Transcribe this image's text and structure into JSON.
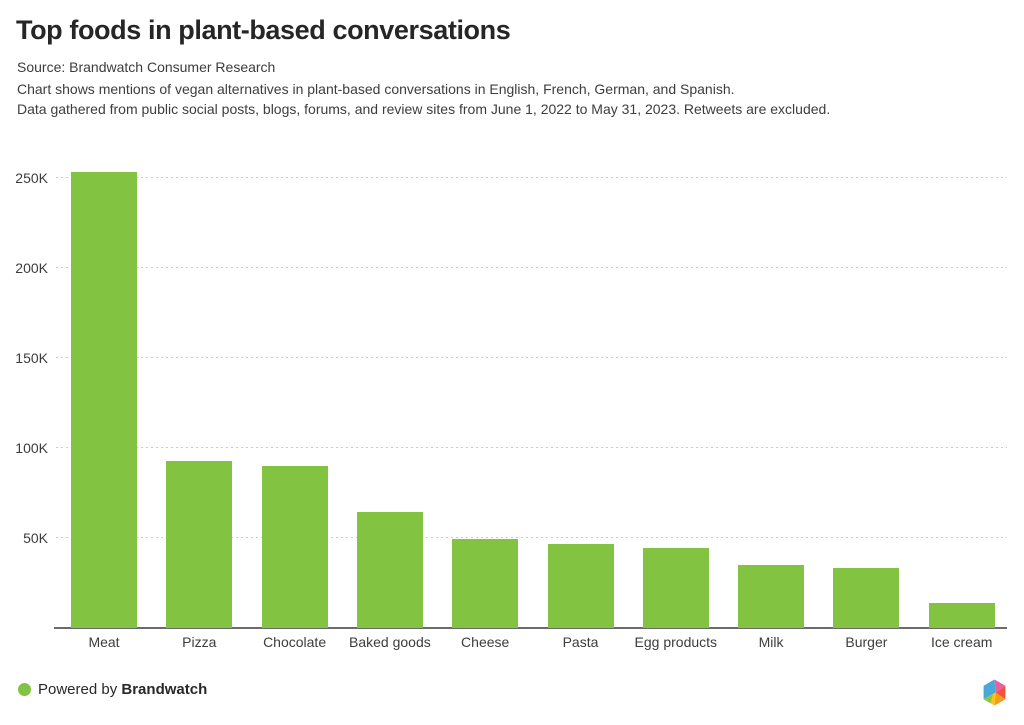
{
  "header": {
    "title": "Top foods in plant-based conversations",
    "source": "Source: Brandwatch Consumer Research",
    "description_line1": "Chart shows mentions of vegan alternatives in plant-based conversations in English, French, German, and Spanish.",
    "description_line2": "Data gathered from public social posts, blogs, forums, and review sites from June 1, 2022 to May 31, 2023. Retweets are excluded."
  },
  "chart_data": {
    "type": "bar",
    "title": "Top foods in plant-based conversations",
    "categories": [
      "Meat",
      "Pizza",
      "Chocolate",
      "Baked goods",
      "Cheese",
      "Pasta",
      "Egg products",
      "Milk",
      "Burger",
      "Ice cream"
    ],
    "values": [
      253200,
      92600,
      90100,
      64600,
      49400,
      46700,
      44300,
      35000,
      33500,
      13700
    ],
    "xlabel": "",
    "ylabel": "",
    "ylim": [
      0,
      264000
    ],
    "yticks": [
      50000,
      100000,
      150000,
      200000,
      250000
    ],
    "ytick_labels": [
      "50K",
      "100K",
      "150K",
      "200K",
      "250K"
    ],
    "legend": "none",
    "grid": "horizontal-dotted",
    "bar_color": "#82c341"
  },
  "footer": {
    "powered_by_label": "Powered by ",
    "brand_label": "Brandwatch",
    "dot_color": "#82c341",
    "logo_icon": "brandwatch-hexagon-logo"
  },
  "colors": {
    "bar": "#82c341",
    "grid_line": "#cbcbcb",
    "axis_line": "#6b6b6b",
    "body_text": "#3d3d3d",
    "title_text": "#262626",
    "logo_blue": "#49a7d9",
    "logo_pink": "#ec5fa4",
    "logo_red": "#f0543e",
    "logo_orange": "#f89a1b",
    "logo_yellow": "#fcc317",
    "logo_green": "#8dc63f"
  }
}
